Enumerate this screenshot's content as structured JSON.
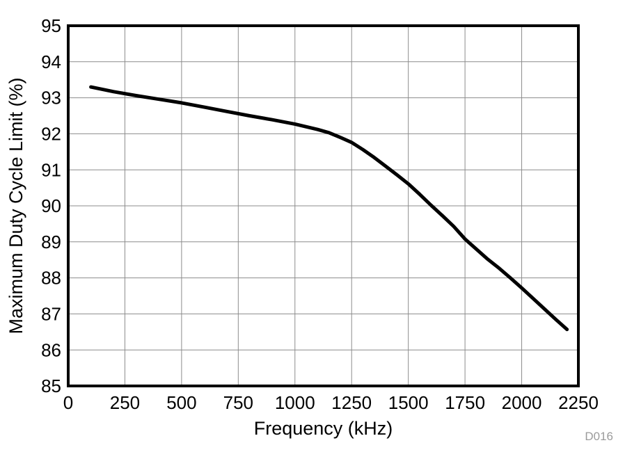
{
  "figure": {
    "watermark": "D016"
  },
  "style": {
    "background": "#ffffff",
    "grid_color": "#8c8c8c",
    "border_color": "#000000",
    "tick_label_color": "#000000",
    "watermark_color": "#9b9b9b"
  },
  "chart_data": {
    "type": "line",
    "title": "",
    "xlabel": "Frequency (kHz)",
    "ylabel": "Maximum Duty Cycle Limit (%)",
    "xlim": [
      0,
      2250
    ],
    "ylim": [
      85,
      95
    ],
    "xticks": [
      0,
      250,
      500,
      750,
      1000,
      1250,
      1500,
      1750,
      2000,
      2250
    ],
    "yticks": [
      85,
      86,
      87,
      88,
      89,
      90,
      91,
      92,
      93,
      94,
      95
    ],
    "grid": true,
    "legend_position": "none",
    "series": [
      {
        "name": "Maximum Duty Cycle Limit",
        "color": "#000000",
        "line_width": 5,
        "points": [
          [
            100,
            93.3
          ],
          [
            200,
            93.17
          ],
          [
            300,
            93.06
          ],
          [
            400,
            92.96
          ],
          [
            500,
            92.86
          ],
          [
            600,
            92.74
          ],
          [
            700,
            92.62
          ],
          [
            800,
            92.5
          ],
          [
            900,
            92.39
          ],
          [
            1000,
            92.27
          ],
          [
            1100,
            92.12
          ],
          [
            1150,
            92.03
          ],
          [
            1200,
            91.9
          ],
          [
            1250,
            91.76
          ],
          [
            1300,
            91.56
          ],
          [
            1350,
            91.34
          ],
          [
            1400,
            91.1
          ],
          [
            1450,
            90.86
          ],
          [
            1500,
            90.61
          ],
          [
            1550,
            90.32
          ],
          [
            1600,
            90.02
          ],
          [
            1650,
            89.73
          ],
          [
            1700,
            89.43
          ],
          [
            1750,
            89.08
          ],
          [
            1800,
            88.8
          ],
          [
            1850,
            88.52
          ],
          [
            1900,
            88.27
          ],
          [
            1950,
            88.0
          ],
          [
            2000,
            87.72
          ],
          [
            2050,
            87.43
          ],
          [
            2100,
            87.14
          ],
          [
            2150,
            86.85
          ],
          [
            2200,
            86.57
          ]
        ]
      }
    ]
  }
}
